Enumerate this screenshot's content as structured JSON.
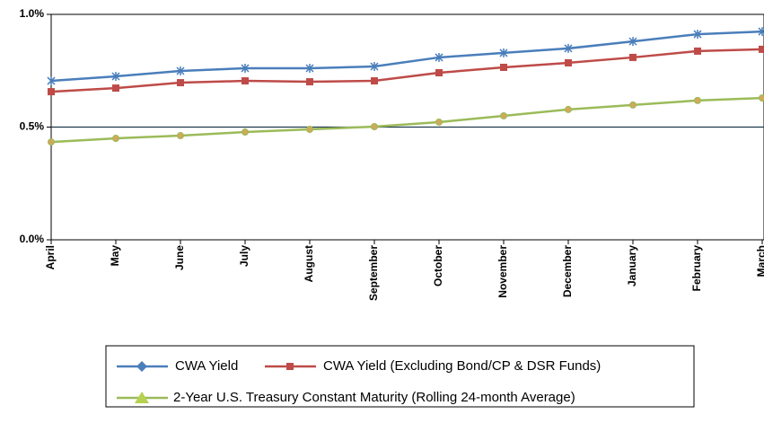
{
  "chart_data": {
    "type": "line",
    "categories": [
      "April",
      "May",
      "June",
      "July",
      "August",
      "September",
      "October",
      "November",
      "December",
      "January",
      "February",
      "March"
    ],
    "series": [
      {
        "name": "CWA Yield",
        "color": "#4a7ebb",
        "marker": "star",
        "legend_marker": "diamond",
        "values": [
          0.705,
          0.725,
          0.749,
          0.761,
          0.761,
          0.769,
          0.809,
          0.829,
          0.849,
          0.88,
          0.912,
          0.924
        ]
      },
      {
        "name": "CWA Yield (Excluding Bond/CP & DSR Funds)",
        "color": "#be4b48",
        "marker": "square",
        "legend_marker": "square",
        "values": [
          0.657,
          0.673,
          0.697,
          0.705,
          0.701,
          0.705,
          0.741,
          0.765,
          0.785,
          0.809,
          0.837,
          0.845
        ]
      },
      {
        "name": "2-Year U.S. Treasury Constant Maturity (Rolling 24-month Average)",
        "color": "#9bbb59",
        "marker": "circle",
        "legend_marker": "triangle",
        "values": [
          0.434,
          0.45,
          0.462,
          0.478,
          0.49,
          0.502,
          0.522,
          0.55,
          0.578,
          0.598,
          0.618,
          0.629
        ]
      }
    ],
    "ylim": [
      0,
      1
    ],
    "yticks": [
      {
        "value": 0,
        "label": "0.0%"
      },
      {
        "value": 0.5,
        "label": "0.5%"
      },
      {
        "value": 1,
        "label": "1.0%"
      }
    ],
    "reference_line": 0.5
  }
}
